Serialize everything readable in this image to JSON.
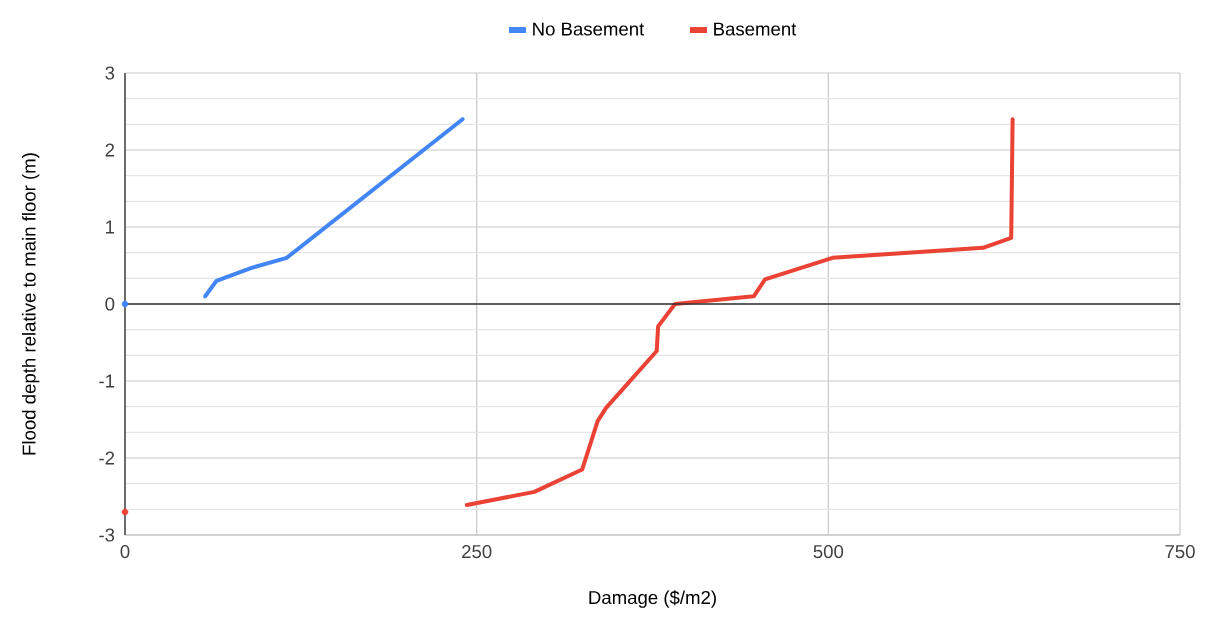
{
  "chart_data": {
    "type": "line",
    "xlabel": "Damage ($/m2)",
    "ylabel": "Flood depth relative to main floor (m)",
    "series": [
      {
        "name": "No Basement",
        "color": "#4285f4",
        "x": [
          0,
          null,
          57,
          65,
          90,
          115,
          240
        ],
        "values": [
          0,
          null,
          0.1,
          0.3,
          0.47,
          0.6,
          2.4
        ]
      },
      {
        "name": "Basement",
        "color": "#ea4335",
        "x": [
          0,
          null,
          243,
          291,
          325,
          336,
          342,
          378,
          379,
          391,
          447,
          455,
          503,
          610,
          630,
          631
        ],
        "values": [
          -2.7,
          null,
          -2.61,
          -2.44,
          -2.15,
          -1.52,
          -1.35,
          -0.61,
          -0.29,
          0,
          0.1,
          0.32,
          0.6,
          0.73,
          0.86,
          2.4
        ]
      }
    ],
    "xlim": [
      0,
      750
    ],
    "ylim": [
      -3,
      3
    ],
    "xticks": [
      0,
      250,
      500,
      750
    ],
    "yticks": [
      -3,
      -2,
      -1,
      0,
      1,
      2,
      3
    ],
    "ref_lines": [
      {
        "axis": "y",
        "value": 0,
        "color": "#333333"
      }
    ],
    "grid": true,
    "legend": "top"
  }
}
